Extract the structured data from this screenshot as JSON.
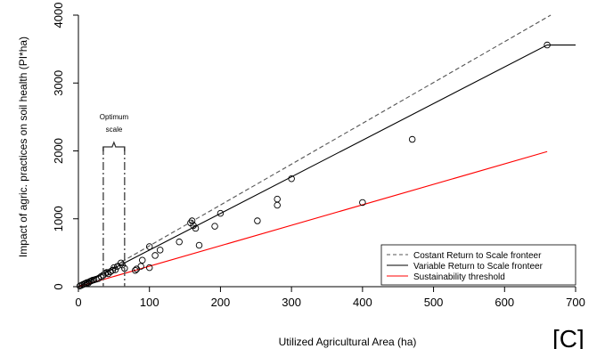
{
  "chart_data": {
    "type": "scatter",
    "xlabel": "Utilized Agricultural Area (ha)",
    "ylabel": "Impact of agric. practices on soil health (PI*ha)",
    "xlim": [
      0,
      700
    ],
    "ylim": [
      0,
      4000
    ],
    "xticks": [
      0,
      100,
      200,
      300,
      400,
      500,
      600,
      700
    ],
    "yticks": [
      0,
      1000,
      2000,
      3000,
      4000
    ],
    "points": [
      {
        "x": 2,
        "y": 10
      },
      {
        "x": 4,
        "y": 20
      },
      {
        "x": 6,
        "y": 30
      },
      {
        "x": 8,
        "y": 40
      },
      {
        "x": 10,
        "y": 50
      },
      {
        "x": 12,
        "y": 60
      },
      {
        "x": 14,
        "y": 55
      },
      {
        "x": 16,
        "y": 75
      },
      {
        "x": 18,
        "y": 85
      },
      {
        "x": 20,
        "y": 95
      },
      {
        "x": 22,
        "y": 100
      },
      {
        "x": 25,
        "y": 110
      },
      {
        "x": 28,
        "y": 120
      },
      {
        "x": 32,
        "y": 150
      },
      {
        "x": 35,
        "y": 170
      },
      {
        "x": 38,
        "y": 200
      },
      {
        "x": 40,
        "y": 210
      },
      {
        "x": 42,
        "y": 190
      },
      {
        "x": 45,
        "y": 220
      },
      {
        "x": 48,
        "y": 240
      },
      {
        "x": 50,
        "y": 280
      },
      {
        "x": 52,
        "y": 250
      },
      {
        "x": 55,
        "y": 300
      },
      {
        "x": 60,
        "y": 350
      },
      {
        "x": 62,
        "y": 320
      },
      {
        "x": 65,
        "y": 270
      },
      {
        "x": 80,
        "y": 240
      },
      {
        "x": 82,
        "y": 260
      },
      {
        "x": 88,
        "y": 300
      },
      {
        "x": 90,
        "y": 390
      },
      {
        "x": 100,
        "y": 590
      },
      {
        "x": 100,
        "y": 280
      },
      {
        "x": 108,
        "y": 460
      },
      {
        "x": 115,
        "y": 540
      },
      {
        "x": 142,
        "y": 660
      },
      {
        "x": 158,
        "y": 940
      },
      {
        "x": 160,
        "y": 970
      },
      {
        "x": 162,
        "y": 900
      },
      {
        "x": 165,
        "y": 860
      },
      {
        "x": 170,
        "y": 610
      },
      {
        "x": 192,
        "y": 890
      },
      {
        "x": 200,
        "y": 1080
      },
      {
        "x": 252,
        "y": 970
      },
      {
        "x": 280,
        "y": 1290
      },
      {
        "x": 280,
        "y": 1200
      },
      {
        "x": 300,
        "y": 1590
      },
      {
        "x": 400,
        "y": 1240
      },
      {
        "x": 470,
        "y": 2170
      },
      {
        "x": 660,
        "y": 3560
      }
    ],
    "lines": [
      {
        "name": "Costant Return to Scale fronteer",
        "color": "#555555",
        "dash": true,
        "points": [
          [
            0,
            0
          ],
          [
            665,
            4000
          ]
        ]
      },
      {
        "name": "Variable Return to Scale fronteer",
        "color": "#000000",
        "dash": false,
        "points": [
          [
            0,
            0
          ],
          [
            660,
            3560
          ],
          [
            700,
            3560
          ]
        ]
      },
      {
        "name": "Sustainability threshold",
        "color": "#ff0000",
        "dash": false,
        "points": [
          [
            0,
            0
          ],
          [
            660,
            1990
          ]
        ]
      }
    ],
    "legend_position": "bottom-right",
    "annotation": {
      "line1": "Optimum",
      "line2": "scale",
      "x_from": 35,
      "x_to": 65
    },
    "panel_label": "[C]"
  }
}
